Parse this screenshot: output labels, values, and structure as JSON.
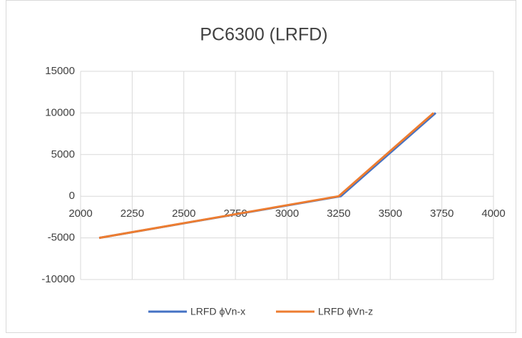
{
  "chart_data": {
    "type": "line",
    "title": "PC6300 (LRFD)",
    "series": [
      {
        "name": "LRFD ϕVn-x",
        "color": "#4472c4",
        "x": [
          2090,
          3260,
          3720
        ],
        "values": [
          -5000,
          0,
          10000
        ]
      },
      {
        "name": "LRFD ϕVn-z",
        "color": "#ed7d31",
        "x": [
          2090,
          3250,
          3710
        ],
        "values": [
          -5000,
          0,
          10000
        ]
      }
    ],
    "xlim": [
      2000,
      4000
    ],
    "xticks": [
      2000,
      2250,
      2500,
      2750,
      3000,
      3250,
      3500,
      3750,
      4000
    ],
    "ylim": [
      -10000,
      15000
    ],
    "yticks": [
      -10000,
      -5000,
      0,
      5000,
      10000,
      15000
    ],
    "grid": true,
    "legend": "bottom"
  }
}
